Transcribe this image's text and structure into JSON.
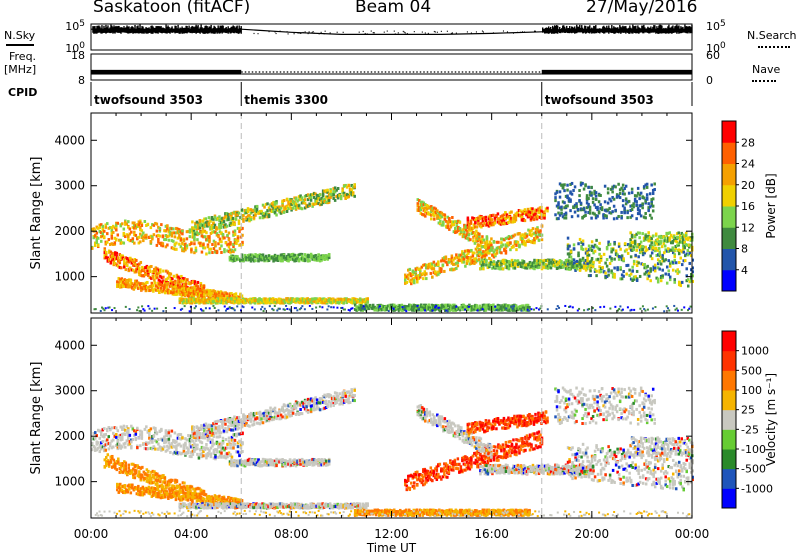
{
  "header": {
    "station": "Saskatoon (fitACF)",
    "beam": "Beam 04",
    "date": "27/May/2016"
  },
  "side_labels": {
    "nsky": "N.Sky",
    "freq_line1": "Freq.",
    "freq_line2": "[MHz]",
    "cpid": "CPID",
    "nsearch": "N.Search",
    "nave": "Nave"
  },
  "chart_data": [
    {
      "type": "line",
      "panel": "noise",
      "left_axis": {
        "ticks": [
          "10^5",
          "10^0"
        ]
      },
      "right_axis": {
        "ticks": [
          "10^5",
          "10^0"
        ]
      },
      "series": [
        {
          "name": "N.Sky",
          "x": [
            "00:00",
            "06:00",
            "08:00",
            "10:00",
            "12:00",
            "14:00",
            "16:00",
            "18:00",
            "20:00",
            "24:00"
          ],
          "values_log10": [
            4.0,
            4.0,
            3.4,
            3.0,
            3.0,
            3.0,
            3.2,
            3.5,
            4.0,
            4.0
          ]
        },
        {
          "name": "N.Search",
          "style": "dotted"
        }
      ]
    },
    {
      "type": "line",
      "panel": "frequency-nave",
      "left_axis": {
        "ticks": [
          "18",
          "8"
        ]
      },
      "right_axis": {
        "ticks": [
          "60",
          "0"
        ]
      },
      "series": [
        {
          "name": "Freq.",
          "segments": [
            [
              "00:00",
              "06:00"
            ],
            [
              "18:00",
              "24:00"
            ]
          ],
          "value_MHz": 11
        },
        {
          "name": "Nave",
          "style": "dotted",
          "value": 8
        }
      ]
    },
    {
      "type": "table",
      "panel": "cpid",
      "segments": [
        {
          "label": "twofsound 3503",
          "start_h": 0,
          "end_h": 6
        },
        {
          "label": "themis 3300",
          "start_h": 6,
          "end_h": 18
        },
        {
          "label": "twofsound 3503",
          "start_h": 18,
          "end_h": 24
        }
      ]
    },
    {
      "type": "heatmap",
      "panel": "power",
      "ylabel": "Slant Range [km]",
      "yticks": [
        "4000",
        "3000",
        "2000",
        "1000"
      ],
      "ylim": [
        200,
        4600
      ],
      "xlim": [
        0,
        24
      ],
      "colorbar": {
        "label": "Power [dB]",
        "ticks": [
          "28",
          "24",
          "20",
          "16",
          "12",
          "8",
          "4"
        ]
      },
      "colors": [
        "#0000ff",
        "#2255aa",
        "#3f8a3f",
        "#7cd44c",
        "#f0d000",
        "#f5a000",
        "#ff6000",
        "#ff0000"
      ]
    },
    {
      "type": "heatmap",
      "panel": "velocity",
      "ylabel": "Slant Range [km]",
      "yticks": [
        "4000",
        "3000",
        "2000",
        "1000"
      ],
      "ylim": [
        200,
        4600
      ],
      "xlim": [
        0,
        24
      ],
      "xticks": [
        "00:00",
        "04:00",
        "08:00",
        "12:00",
        "16:00",
        "20:00",
        "00:00"
      ],
      "xlabel": "Time UT",
      "colorbar": {
        "label": "Velocity [m s⁻¹]",
        "ticks": [
          "1000",
          "500",
          "100",
          "25",
          "-25",
          "-100",
          "-500",
          "-1000"
        ]
      },
      "colors": [
        "#0000ff",
        "#1f55bb",
        "#2a8a2a",
        "#66cc33",
        "#c8c8c0",
        "#f5b400",
        "#ff7700",
        "#ff3300",
        "#ff0000"
      ]
    }
  ]
}
